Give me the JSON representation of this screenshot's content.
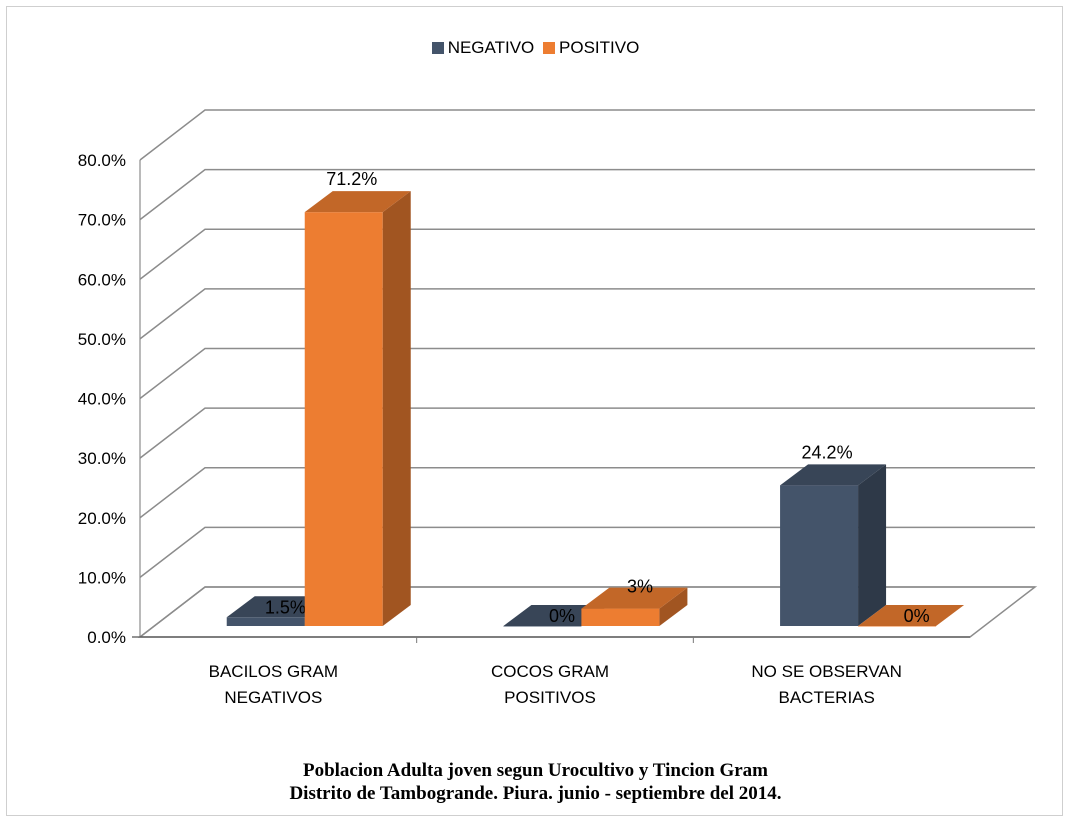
{
  "chart_data": {
    "type": "bar",
    "categories": [
      [
        "BACILOS GRAM",
        "NEGATIVOS"
      ],
      [
        "COCOS GRAM",
        "POSITIVOS"
      ],
      [
        "NO SE OBSERVAN",
        "BACTERIAS"
      ]
    ],
    "series": [
      {
        "name": "NEGATIVO",
        "color": "#44546A",
        "values": [
          1.5,
          0,
          24.2
        ],
        "labels": [
          "1.5%",
          "0%",
          "24.2%"
        ]
      },
      {
        "name": "POSITIVO",
        "color": "#ED7D31",
        "values": [
          71.2,
          3,
          0
        ],
        "labels": [
          "71.2%",
          "3%",
          "0%"
        ]
      }
    ],
    "ylim": [
      0,
      80
    ],
    "yticks": [
      "0.0%",
      "10.0%",
      "20.0%",
      "30.0%",
      "40.0%",
      "50.0%",
      "60.0%",
      "70.0%",
      "80.0%"
    ],
    "grid": true,
    "legend_position": "top",
    "style": "3d-column"
  },
  "caption": {
    "line1": "Poblacion Adulta joven segun Urocultivo y Tincion Gram",
    "line2": "Distrito de Tambogrande. Piura. junio - septiembre del 2014."
  }
}
